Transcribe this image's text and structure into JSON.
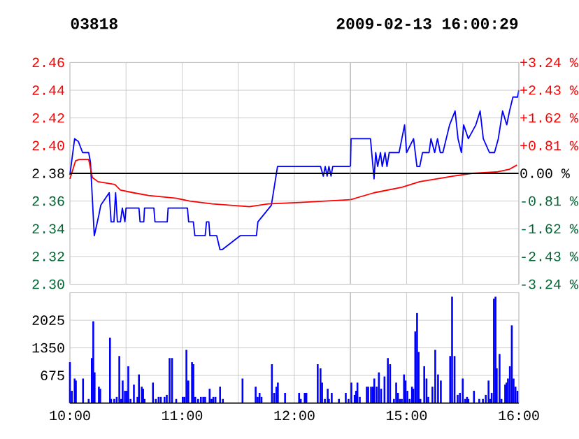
{
  "chart_data": [
    {
      "type": "line",
      "title": "03818",
      "grid": true,
      "tick_labels": "y",
      "xlim": [
        10,
        12.5
      ],
      "xticks": [
        {
          "value": 10,
          "label": null
        },
        {
          "value": 10.5,
          "label": null
        },
        {
          "value": 11,
          "label": null
        },
        {
          "value": 11.5,
          "label": null
        },
        {
          "value": 12,
          "label": null
        },
        {
          "value": 12.5,
          "label": null
        }
      ],
      "ylim": [
        2.3,
        2.46
      ],
      "yticks": [
        {
          "value": 2.3,
          "label": "2.30"
        },
        2.32,
        2.34,
        2.36,
        2.38,
        {
          "value": 2.4,
          "label": "2.40"
        },
        2.42,
        2.44,
        2.46
      ],
      "ref_lines": [
        {
          "axis": "y",
          "value": 2.38,
          "color": "#000000"
        }
      ],
      "series": [
        {
          "color": "#0000ff",
          "x": [
            10,
            10.042,
            10.075,
            10.113,
            10.167,
            10.183,
            10.217,
            10.258,
            10.275,
            10.35,
            10.367,
            10.392,
            10.407,
            10.423,
            10.45,
            10.467,
            10.49,
            10.5,
            10.615,
            10.625,
            10.658,
            10.665,
            10.748,
            10.758,
            10.867,
            10.875,
            11.047,
            11.058,
            11.1,
            11.113,
            11.205,
            11.217,
            11.238,
            11.247,
            11.308,
            11.337,
            11.358,
            11.517,
            11.662,
            11.675,
            11.795,
            11.85,
            12.233,
            12.258,
            12.275,
            12.292,
            12.308,
            12.327,
            12.342,
            12.483,
            12.5
          ],
          "values": [
            2.379,
            2.405,
            2.403,
            2.395,
            2.395,
            2.388,
            2.335,
            2.35,
            2.357,
            2.366,
            2.345,
            2.345,
            2.366,
            2.345,
            2.345,
            2.355,
            2.345,
            2.355,
            2.355,
            2.345,
            2.345,
            2.355,
            2.355,
            2.345,
            2.345,
            2.355,
            2.355,
            2.345,
            2.345,
            2.335,
            2.335,
            2.345,
            2.345,
            2.335,
            2.335,
            2.325,
            2.325,
            2.335,
            2.335,
            2.345,
            2.357,
            2.385,
            2.385,
            2.378,
            2.385,
            2.378,
            2.385,
            2.378,
            2.385,
            2.385,
            2.385
          ]
        },
        {
          "color": "#ff0000",
          "x": [
            10,
            10.05,
            10.083,
            10.167,
            10.2,
            10.25,
            10.4,
            10.45,
            10.567,
            10.7,
            10.95,
            11.067,
            11.267,
            11.6,
            11.767,
            12.05,
            12.5
          ],
          "values": [
            2.376,
            2.389,
            2.39,
            2.39,
            2.377,
            2.374,
            2.372,
            2.368,
            2.366,
            2.364,
            2.362,
            2.36,
            2.358,
            2.356,
            2.358,
            2.359,
            2.361
          ]
        }
      ]
    },
    {
      "type": "line",
      "subtitle": "2009-02-13 16:00:29",
      "grid": true,
      "tick_labels": false,
      "xlim": [
        14.5,
        16
      ],
      "xticks": [
        {
          "value": 14.5,
          "label": null
        },
        {
          "value": 15,
          "label": null
        },
        {
          "value": 15.5,
          "label": null
        },
        {
          "value": 16,
          "label": null
        }
      ],
      "ylim": [
        2.3,
        2.46
      ],
      "yticks": [
        2.3,
        2.32,
        2.34,
        2.36,
        2.38,
        2.4,
        2.42,
        2.44,
        2.46
      ],
      "y2lim": [
        -3.24,
        3.24
      ],
      "y2ticks": [
        {
          "value": -3.24,
          "label": "-3.24 %"
        },
        {
          "value": -2.43,
          "label": "-2.43 %"
        },
        {
          "value": -1.62,
          "label": "-1.62 %"
        },
        {
          "value": -0.81,
          "label": "-0.81 %"
        },
        {
          "value": 0,
          "label": "0.00 %"
        },
        {
          "value": 0.81,
          "label": "+0.81 %"
        },
        {
          "value": 1.62,
          "label": "+1.62 %"
        },
        {
          "value": 2.43,
          "label": "+2.43 %"
        },
        {
          "value": 3.24,
          "label": "+3.24 %"
        }
      ],
      "ref_lines": [
        {
          "axis": "y",
          "value": 2.38,
          "color": "#000000"
        }
      ],
      "series": [
        {
          "color": "#0000ff",
          "x": [
            14.5,
            14.505,
            14.678,
            14.71,
            14.725,
            14.742,
            14.767,
            14.783,
            14.808,
            14.825,
            14.845,
            14.933,
            14.982,
            15,
            15.062,
            15.092,
            15.117,
            15.142,
            15.2,
            15.217,
            15.25,
            15.275,
            15.3,
            15.323,
            15.383,
            15.432,
            15.458,
            15.488,
            15.508,
            15.55,
            15.617,
            15.655,
            15.683,
            15.738,
            15.783,
            15.817,
            15.855,
            15.892,
            15.917,
            15.947,
            15.988,
            16
          ],
          "values": [
            2.385,
            2.405,
            2.405,
            2.376,
            2.395,
            2.385,
            2.395,
            2.385,
            2.395,
            2.385,
            2.395,
            2.395,
            2.415,
            2.395,
            2.405,
            2.385,
            2.385,
            2.395,
            2.395,
            2.405,
            2.395,
            2.405,
            2.395,
            2.395,
            2.415,
            2.425,
            2.405,
            2.395,
            2.415,
            2.405,
            2.415,
            2.425,
            2.405,
            2.395,
            2.395,
            2.405,
            2.425,
            2.415,
            2.425,
            2.435,
            2.435,
            2.44
          ]
        },
        {
          "color": "#ff0000",
          "x": [
            14.5,
            14.71,
            14.958,
            15.117,
            15.417,
            15.583,
            15.8,
            15.917,
            15.983
          ],
          "values": [
            2.361,
            2.366,
            2.37,
            2.374,
            2.378,
            2.38,
            2.381,
            2.383,
            2.386
          ]
        }
      ]
    },
    {
      "type": "bar",
      "grid": true,
      "color": "#0000ff",
      "xlim": [
        10,
        12.5
      ],
      "xticks": [
        {
          "value": 10,
          "label": "10:00"
        },
        {
          "value": 10.5,
          "label": null
        },
        {
          "value": 11,
          "label": "11:00"
        },
        {
          "value": 11.5,
          "label": null
        },
        {
          "value": 12,
          "label": "12:00"
        },
        {
          "value": 12.5,
          "label": null
        }
      ],
      "ylim": [
        0,
        2700
      ],
      "yticks": [
        675,
        1350,
        2025
      ],
      "x": [
        10,
        10.017,
        10.042,
        10.053,
        10.117,
        10.167,
        10.195,
        10.208,
        10.22,
        10.258,
        10.27,
        10.357,
        10.367,
        10.395,
        10.417,
        10.44,
        10.457,
        10.47,
        10.49,
        10.507,
        10.52,
        10.54,
        10.57,
        10.602,
        10.615,
        10.64,
        10.652,
        10.665,
        10.74,
        10.765,
        10.79,
        10.81,
        10.843,
        10.863,
        10.888,
        10.91,
        10.947,
        11.005,
        11.02,
        11.038,
        11.055,
        11.088,
        11.1,
        11.117,
        11.142,
        11.167,
        11.188,
        11.205,
        11.245,
        11.262,
        11.278,
        11.297,
        11.338,
        11.363,
        11.538,
        11.655,
        11.673,
        11.69,
        11.707,
        11.8,
        11.82,
        11.84,
        11.853,
        11.917,
        12.042,
        12.057,
        12.092,
        12.107,
        12.208,
        12.233,
        12.247,
        12.272,
        12.297,
        12.308,
        12.333,
        12.397,
        12.458,
        12.483
      ],
      "values": [
        1000,
        300,
        600,
        550,
        600,
        100,
        1100,
        2000,
        750,
        400,
        350,
        1600,
        100,
        100,
        150,
        1150,
        100,
        550,
        300,
        300,
        900,
        100,
        450,
        150,
        700,
        400,
        350,
        100,
        500,
        100,
        150,
        150,
        150,
        200,
        1100,
        1100,
        100,
        150,
        150,
        1300,
        550,
        1000,
        950,
        150,
        100,
        150,
        150,
        150,
        350,
        100,
        150,
        150,
        400,
        100,
        600,
        400,
        150,
        250,
        150,
        950,
        250,
        400,
        500,
        250,
        250,
        100,
        250,
        250,
        950,
        850,
        500,
        100,
        350,
        100,
        250,
        100,
        250,
        100
      ]
    },
    {
      "type": "bar",
      "grid": true,
      "color": "#0000ff",
      "tick_labels": "x",
      "xlim": [
        14.5,
        16
      ],
      "xticks": [
        {
          "value": 14.5,
          "label": null
        },
        {
          "value": 15,
          "label": "15:00"
        },
        {
          "value": 15.5,
          "label": null
        },
        {
          "value": 16,
          "label": "16:00"
        }
      ],
      "ylim": [
        0,
        2700
      ],
      "yticks": [
        675,
        1350,
        2025
      ],
      "x": [
        14.508,
        14.537,
        14.55,
        14.562,
        14.583,
        14.645,
        14.658,
        14.683,
        14.7,
        14.712,
        14.733,
        14.753,
        14.773,
        14.803,
        14.833,
        14.853,
        14.887,
        14.907,
        14.923,
        14.94,
        14.957,
        14.977,
        14.99,
        15.007,
        15.027,
        15.048,
        15.06,
        15.077,
        15.093,
        15.107,
        15.123,
        15.157,
        15.177,
        15.193,
        15.23,
        15.255,
        15.28,
        15.305,
        15.388,
        15.405,
        15.427,
        15.455,
        15.475,
        15.5,
        15.522,
        15.538,
        15.55,
        15.6,
        15.647,
        15.68,
        15.705,
        15.73,
        15.747,
        15.758,
        15.778,
        15.792,
        15.803,
        15.828,
        15.845,
        15.878,
        15.89,
        15.903,
        15.92,
        15.937,
        15.953,
        15.97,
        15.987
      ],
      "values": [
        500,
        200,
        300,
        500,
        150,
        400,
        400,
        400,
        400,
        600,
        400,
        750,
        350,
        650,
        1100,
        950,
        100,
        500,
        250,
        100,
        100,
        700,
        550,
        300,
        100,
        400,
        350,
        1750,
        2200,
        1250,
        100,
        900,
        600,
        150,
        400,
        1300,
        700,
        550,
        1150,
        2600,
        1150,
        200,
        250,
        600,
        100,
        150,
        100,
        300,
        100,
        100,
        200,
        550,
        100,
        250,
        2550,
        2600,
        850,
        1200,
        100,
        450,
        500,
        600,
        900,
        1900,
        600,
        400,
        300
      ]
    }
  ]
}
